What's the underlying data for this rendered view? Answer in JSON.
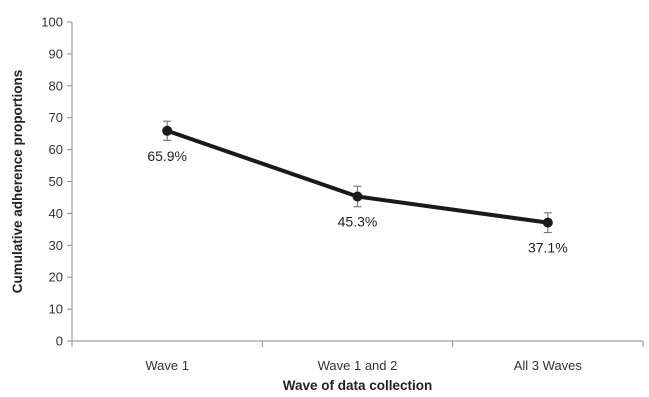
{
  "chart_data": {
    "type": "line",
    "categories": [
      "Wave 1",
      "Wave 1 and 2",
      "All 3 Waves"
    ],
    "series": [
      {
        "values": [
          65.9,
          45.3,
          37.1
        ],
        "error": [
          3.0,
          3.2,
          3.1
        ],
        "data_labels": [
          "65.9%",
          "45.3%",
          "37.1%"
        ]
      }
    ],
    "xlabel": "Wave of data collection",
    "ylabel": "Cumulative adherence proportions",
    "ylim": [
      0,
      100
    ],
    "yticks": [
      0,
      10,
      20,
      30,
      40,
      50,
      60,
      70,
      80,
      90,
      100
    ],
    "yticks_labels": [
      "0",
      "10",
      "20",
      "30",
      "40",
      "50",
      "60",
      "70",
      "80",
      "90",
      "100"
    ],
    "grid": false,
    "colors": {
      "line": "#1a1a1a",
      "error_bars": "#7a7a7a",
      "axis": "#8c8c8c"
    }
  }
}
